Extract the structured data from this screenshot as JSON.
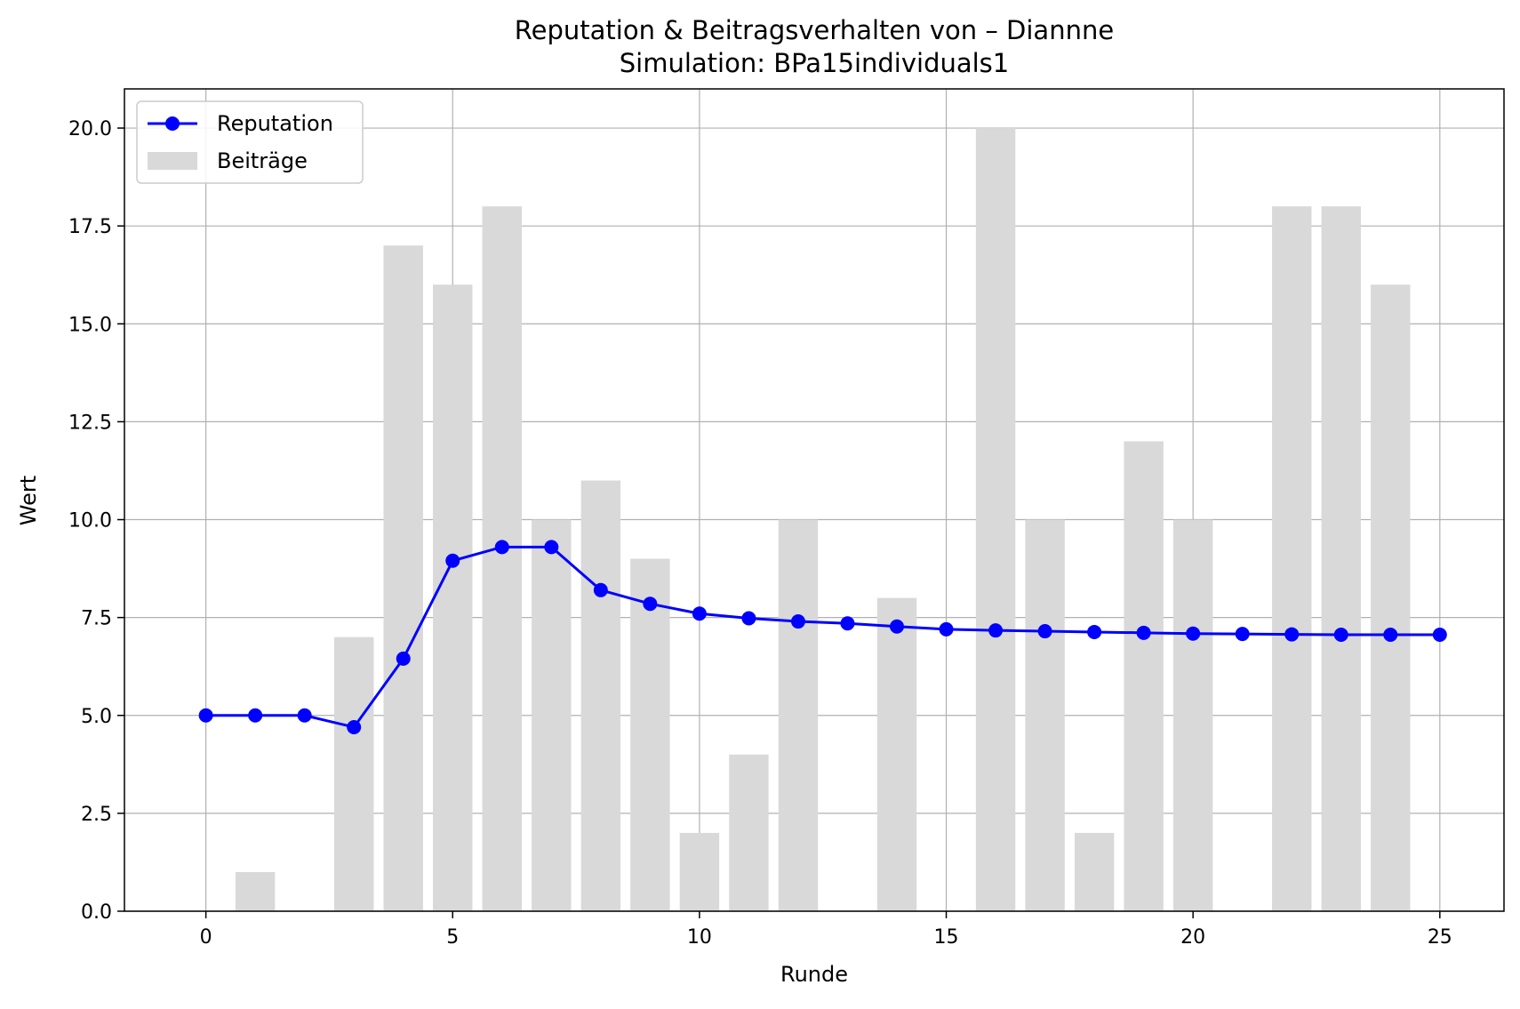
{
  "chart_data": {
    "type": "bar+line",
    "title": "Reputation & Beitragsverhalten von – Diannne",
    "subtitle": "Simulation: BPa15individuals1",
    "xlabel": "Runde",
    "ylabel": "Wert",
    "xlim": [
      -1.65,
      26.3
    ],
    "ylim": [
      0,
      21.0
    ],
    "x_ticks": [
      "0",
      "5",
      "10",
      "15",
      "20",
      "25"
    ],
    "x_tick_values": [
      0,
      5,
      10,
      15,
      20,
      25
    ],
    "y_ticks": [
      "0.0",
      "2.5",
      "5.0",
      "7.5",
      "10.0",
      "12.5",
      "15.0",
      "17.5",
      "20.0"
    ],
    "y_tick_values": [
      0,
      2.5,
      5,
      7.5,
      10,
      12.5,
      15,
      17.5,
      20
    ],
    "grid": true,
    "legend_position": "top-left",
    "bar_width": 0.8,
    "series": [
      {
        "name": "Reputation",
        "kind": "line",
        "color": "#0000ff",
        "marker": "circle",
        "x": [
          0,
          1,
          2,
          3,
          4,
          5,
          6,
          7,
          8,
          9,
          10,
          11,
          12,
          13,
          14,
          15,
          16,
          17,
          18,
          19,
          20,
          21,
          22,
          23,
          24,
          25
        ],
        "values": [
          5.0,
          5.0,
          5.0,
          4.7,
          6.45,
          8.95,
          9.3,
          9.3,
          8.2,
          7.85,
          7.6,
          7.48,
          7.4,
          7.35,
          7.27,
          7.2,
          7.17,
          7.15,
          7.13,
          7.11,
          7.09,
          7.08,
          7.07,
          7.06,
          7.06,
          7.06
        ]
      },
      {
        "name": "Beiträge",
        "kind": "bar",
        "color": "#d9d9d9",
        "x": [
          0,
          1,
          2,
          3,
          4,
          5,
          6,
          7,
          8,
          9,
          10,
          11,
          12,
          13,
          14,
          15,
          16,
          17,
          18,
          19,
          20,
          21,
          22,
          23,
          24,
          25
        ],
        "values": [
          0,
          1,
          0,
          7,
          17,
          16,
          18,
          10,
          11,
          9,
          2,
          4,
          10,
          0,
          8,
          0,
          20,
          10,
          2,
          12,
          10,
          0,
          18,
          18,
          16,
          0
        ]
      }
    ]
  }
}
